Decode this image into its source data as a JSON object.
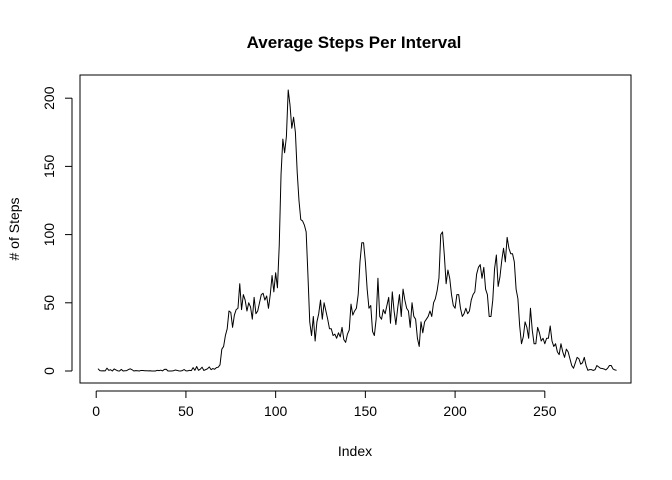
{
  "chart_data": {
    "type": "line",
    "title": "Average Steps Per Interval",
    "xlabel": "Index",
    "ylabel": "# of Steps",
    "xlim": [
      1,
      288
    ],
    "ylim": [
      0,
      206
    ],
    "xticks": [
      0,
      50,
      100,
      150,
      200,
      250
    ],
    "yticks": [
      0,
      50,
      100,
      150,
      200
    ],
    "grid": false,
    "series": [
      {
        "values": [
          1.7,
          0.3,
          0.1,
          0.2,
          0.1,
          2.1,
          0.5,
          0.9,
          0,
          1.5,
          0.8,
          0.1,
          0,
          1.2,
          0,
          0.2,
          0.3,
          1.1,
          1.6,
          0.9,
          0,
          0.3,
          0.2,
          0,
          0.4,
          0.4,
          0.2,
          0.2,
          0.1,
          0.2,
          0,
          0,
          0,
          0.5,
          0.3,
          0.6,
          0.1,
          1.2,
          1.3,
          0,
          0,
          0,
          0.2,
          0.7,
          0.5,
          0.1,
          0,
          0.3,
          1.1,
          0.1,
          0.1,
          0.5,
          0.3,
          2.5,
          0.5,
          3.3,
          0.5,
          1.3,
          2.8,
          0.4,
          1.0,
          1.6,
          3.0,
          1.0,
          1.8,
          1.3,
          2.5,
          2.8,
          4.5,
          16,
          18,
          26,
          31,
          44,
          43,
          32,
          41,
          45,
          46,
          64,
          45,
          56,
          52,
          44,
          50,
          47,
          38,
          54,
          42,
          44,
          50,
          56,
          57,
          52,
          55,
          46,
          56,
          70,
          58,
          72,
          61,
          92,
          144,
          170,
          160,
          172,
          206,
          195,
          178,
          186,
          175,
          146,
          125,
          111,
          110,
          107,
          102,
          70,
          36,
          26,
          40,
          22,
          36,
          42,
          52,
          38,
          50,
          44,
          38,
          31,
          31,
          26,
          27,
          24,
          28,
          25,
          32,
          23,
          21,
          27,
          30,
          49,
          41,
          44,
          46,
          56,
          80,
          94,
          94,
          80,
          60,
          46,
          48,
          29,
          26,
          38,
          68,
          40,
          38,
          45,
          42,
          48,
          54,
          35,
          58,
          44,
          34,
          46,
          56,
          40,
          60,
          52,
          46,
          44,
          32,
          50,
          40,
          38,
          24,
          18,
          36,
          28,
          36,
          38,
          40,
          44,
          40,
          50,
          53,
          59,
          68,
          100,
          102,
          85,
          64,
          74,
          68,
          56,
          48,
          46,
          56,
          56,
          46,
          40,
          42,
          46,
          42,
          44,
          52,
          56,
          58,
          71,
          76,
          78,
          68,
          76,
          60,
          56,
          40,
          40,
          52,
          75,
          85,
          62,
          69,
          81,
          90,
          80,
          98,
          90,
          86,
          86,
          80,
          60,
          53,
          33,
          20,
          25,
          36,
          32,
          24,
          46,
          30,
          20,
          20,
          32,
          28,
          22,
          24,
          20,
          24,
          24,
          33,
          22,
          18,
          20,
          14,
          12,
          20,
          14,
          10,
          16,
          14,
          9,
          4,
          2,
          6,
          10,
          9,
          5,
          6,
          10,
          4,
          0.5,
          1,
          1,
          0.4,
          1,
          4,
          3,
          2,
          1.8,
          1.5,
          0.8,
          2,
          4,
          4,
          1.5,
          0.8,
          0.5
        ]
      }
    ]
  }
}
